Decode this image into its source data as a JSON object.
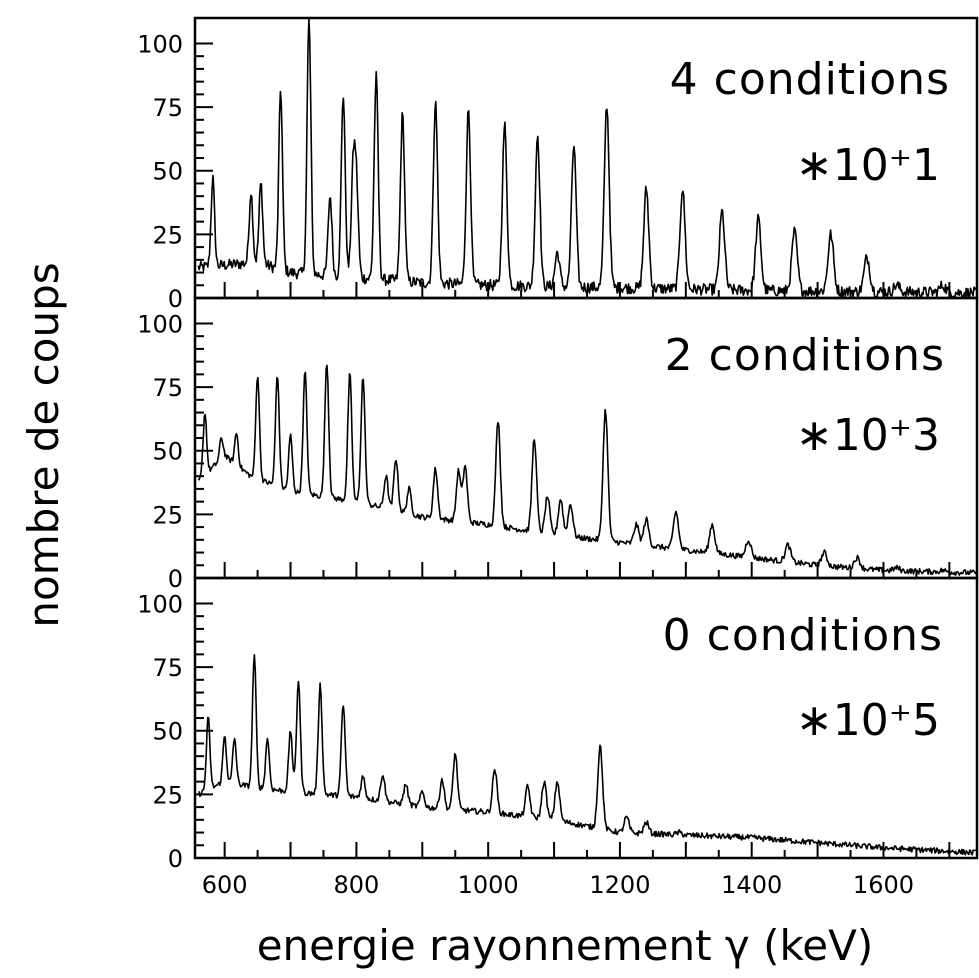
{
  "chart_data": {
    "type": "line",
    "xlabel": "energie rayonnement γ (keV)",
    "ylabel": "nombre de coups",
    "xlim": [
      555,
      1745
    ],
    "ylim": [
      0,
      110
    ],
    "x_ticks": [
      600,
      800,
      1000,
      1200,
      1400,
      1600
    ],
    "y_ticks": [
      0,
      25,
      50,
      75,
      100
    ],
    "grid": false,
    "panels": [
      {
        "id": "panel-4",
        "title": "4 conditions",
        "scale": "∗10⁺1",
        "baseline": [
          [
            560,
            12
          ],
          [
            650,
            14
          ],
          [
            700,
            10
          ],
          [
            800,
            8
          ],
          [
            900,
            6
          ],
          [
            1000,
            5
          ],
          [
            1200,
            4
          ],
          [
            1400,
            3
          ],
          [
            1745,
            2
          ]
        ],
        "peaks": [
          [
            582,
            47
          ],
          [
            640,
            42
          ],
          [
            655,
            45
          ],
          [
            685,
            82
          ],
          [
            728,
            110
          ],
          [
            760,
            40
          ],
          [
            780,
            80
          ],
          [
            795,
            48
          ],
          [
            800,
            43
          ],
          [
            830,
            87
          ],
          [
            870,
            72
          ],
          [
            920,
            77
          ],
          [
            970,
            74
          ],
          [
            1025,
            68
          ],
          [
            1075,
            64
          ],
          [
            1105,
            18
          ],
          [
            1130,
            60
          ],
          [
            1180,
            76
          ],
          [
            1240,
            43
          ],
          [
            1295,
            43
          ],
          [
            1355,
            34
          ],
          [
            1410,
            31
          ],
          [
            1465,
            26
          ],
          [
            1520,
            25
          ],
          [
            1575,
            16
          ],
          [
            1620,
            5
          ],
          [
            1690,
            5
          ]
        ]
      },
      {
        "id": "panel-2",
        "title": "2 conditions",
        "scale": "∗10⁺3",
        "baseline": [
          [
            560,
            38
          ],
          [
            600,
            48
          ],
          [
            640,
            40
          ],
          [
            700,
            34
          ],
          [
            800,
            30
          ],
          [
            900,
            24
          ],
          [
            1000,
            21
          ],
          [
            1100,
            17
          ],
          [
            1200,
            14
          ],
          [
            1300,
            11
          ],
          [
            1400,
            8
          ],
          [
            1500,
            5
          ],
          [
            1600,
            3
          ],
          [
            1745,
            2
          ]
        ],
        "peaks": [
          [
            570,
            65
          ],
          [
            595,
            55
          ],
          [
            618,
            57
          ],
          [
            650,
            80
          ],
          [
            680,
            80
          ],
          [
            700,
            56
          ],
          [
            722,
            81
          ],
          [
            755,
            85
          ],
          [
            790,
            80
          ],
          [
            810,
            79
          ],
          [
            845,
            40
          ],
          [
            860,
            47
          ],
          [
            880,
            35
          ],
          [
            920,
            43
          ],
          [
            955,
            42
          ],
          [
            965,
            44
          ],
          [
            1015,
            62
          ],
          [
            1070,
            55
          ],
          [
            1090,
            32
          ],
          [
            1110,
            31
          ],
          [
            1125,
            29
          ],
          [
            1178,
            66
          ],
          [
            1225,
            21
          ],
          [
            1240,
            23
          ],
          [
            1285,
            26
          ],
          [
            1340,
            21
          ],
          [
            1395,
            15
          ],
          [
            1455,
            13
          ],
          [
            1510,
            10
          ],
          [
            1560,
            8
          ],
          [
            1620,
            4
          ],
          [
            1690,
            3
          ]
        ]
      },
      {
        "id": "panel-0",
        "title": "0 conditions",
        "scale": "∗10⁺5",
        "baseline": [
          [
            560,
            25
          ],
          [
            600,
            30
          ],
          [
            640,
            28
          ],
          [
            700,
            26
          ],
          [
            800,
            24
          ],
          [
            900,
            20
          ],
          [
            1000,
            18
          ],
          [
            1100,
            15
          ],
          [
            1200,
            10
          ],
          [
            1300,
            9
          ],
          [
            1400,
            8
          ],
          [
            1500,
            6
          ],
          [
            1600,
            4
          ],
          [
            1745,
            2
          ]
        ],
        "peaks": [
          [
            575,
            55
          ],
          [
            600,
            48
          ],
          [
            615,
            47
          ],
          [
            645,
            80
          ],
          [
            665,
            47
          ],
          [
            700,
            50
          ],
          [
            712,
            70
          ],
          [
            745,
            68
          ],
          [
            780,
            60
          ],
          [
            810,
            32
          ],
          [
            840,
            33
          ],
          [
            875,
            29
          ],
          [
            900,
            26
          ],
          [
            930,
            31
          ],
          [
            950,
            41
          ],
          [
            1010,
            35
          ],
          [
            1060,
            28
          ],
          [
            1085,
            30
          ],
          [
            1105,
            30
          ],
          [
            1170,
            44
          ],
          [
            1210,
            16
          ],
          [
            1240,
            14
          ],
          [
            1290,
            10
          ],
          [
            1340,
            8
          ]
        ]
      }
    ]
  }
}
